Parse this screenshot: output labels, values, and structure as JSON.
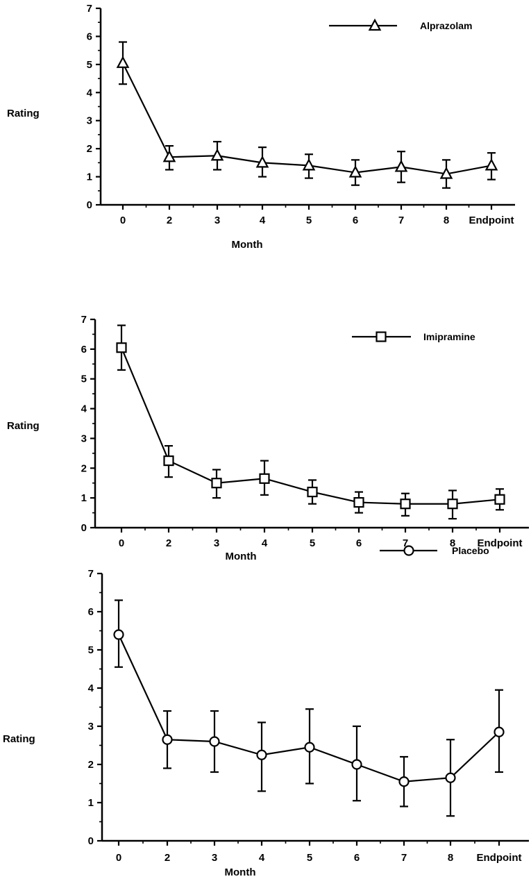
{
  "chart_data": [
    {
      "type": "line",
      "title": "",
      "xlabel": "Month",
      "ylabel": "Rating",
      "ylim": [
        0,
        7
      ],
      "yticks": [
        "0",
        "1",
        "2",
        "3",
        "4",
        "5",
        "6",
        "7"
      ],
      "categories": [
        "0",
        "2",
        "3",
        "4",
        "5",
        "6",
        "7",
        "8",
        "Endpoint"
      ],
      "legend_position": "top-right",
      "series": [
        {
          "name": "Alprazolam",
          "marker": "triangle",
          "values": [
            5.05,
            1.7,
            1.75,
            1.5,
            1.4,
            1.15,
            1.35,
            1.1,
            1.4
          ],
          "err_low": [
            4.3,
            1.25,
            1.25,
            1.0,
            0.95,
            0.7,
            0.8,
            0.6,
            0.9
          ],
          "err_high": [
            5.8,
            2.1,
            2.25,
            2.05,
            1.8,
            1.6,
            1.9,
            1.6,
            1.85
          ]
        }
      ]
    },
    {
      "type": "line",
      "title": "",
      "xlabel": "Month",
      "ylabel": "Rating",
      "ylim": [
        0,
        7
      ],
      "yticks": [
        "0",
        "1",
        "2",
        "3",
        "4",
        "5",
        "6",
        "7"
      ],
      "categories": [
        "0",
        "2",
        "3",
        "4",
        "5",
        "6",
        "7",
        "8",
        "Endpoint"
      ],
      "legend_position": "top-right",
      "series": [
        {
          "name": "Imipramine",
          "marker": "square",
          "values": [
            6.05,
            2.25,
            1.5,
            1.65,
            1.2,
            0.85,
            0.8,
            0.8,
            0.95
          ],
          "err_low": [
            5.3,
            1.7,
            1.0,
            1.1,
            0.8,
            0.5,
            0.4,
            0.3,
            0.6
          ],
          "err_high": [
            6.8,
            2.75,
            1.95,
            2.25,
            1.6,
            1.2,
            1.15,
            1.25,
            1.3
          ]
        }
      ]
    },
    {
      "type": "line",
      "title": "",
      "xlabel": "Month",
      "ylabel": "Rating",
      "ylim": [
        0,
        7
      ],
      "yticks": [
        "0",
        "1",
        "2",
        "3",
        "4",
        "5",
        "6",
        "7"
      ],
      "categories": [
        "0",
        "2",
        "3",
        "4",
        "5",
        "6",
        "7",
        "8",
        "Endpoint"
      ],
      "legend_position": "top-right",
      "series": [
        {
          "name": "Placebo",
          "marker": "circle",
          "values": [
            5.4,
            2.65,
            2.6,
            2.25,
            2.45,
            2.0,
            1.55,
            1.65,
            2.85
          ],
          "err_low": [
            4.55,
            1.9,
            1.8,
            1.3,
            1.5,
            1.05,
            0.9,
            0.65,
            1.8
          ],
          "err_high": [
            6.3,
            3.4,
            3.4,
            3.1,
            3.45,
            3.0,
            2.2,
            2.65,
            3.95
          ]
        }
      ]
    }
  ]
}
